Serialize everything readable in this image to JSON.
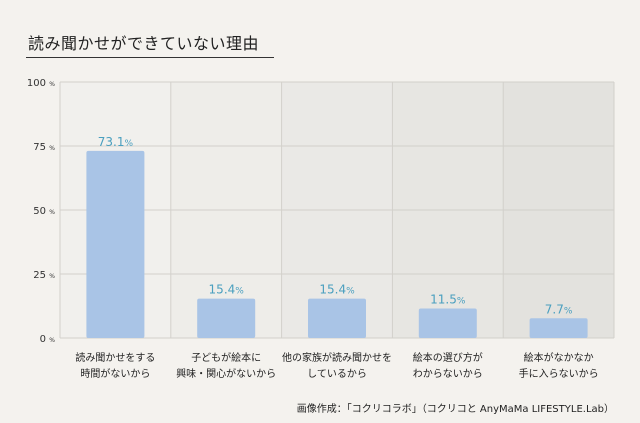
{
  "title": "読み聞かせができていない理由",
  "credit": "画像作成：「コクリコラボ」（コクリコと AnyMaMa LIFESTYLE.Lab）",
  "colors": {
    "bar": "#a9c4e6",
    "value_label": "#4a9fbf",
    "panel_light": "#f1f0ed",
    "panel_dark": "#e3e2de",
    "grid": "#d2d0cb"
  },
  "chart_data": {
    "type": "bar",
    "title": "読み聞かせができていない理由",
    "categories": [
      [
        "読み聞かせをする",
        "時間がないから"
      ],
      [
        "子どもが絵本に",
        "興味・関心がないから"
      ],
      [
        "他の家族が読み聞かせを",
        "しているから"
      ],
      [
        "絵本の選び方が",
        "わからないから"
      ],
      [
        "絵本がなかなか",
        "手に入らないから"
      ]
    ],
    "values": [
      73.1,
      15.4,
      15.4,
      11.5,
      7.7
    ],
    "value_labels": [
      "73.1",
      "15.4",
      "15.4",
      "11.5",
      "7.7"
    ],
    "unit": "%",
    "ylim": [
      0,
      100
    ],
    "yticks": [
      0,
      25,
      50,
      75,
      100
    ],
    "ytick_labels": [
      "0",
      "25",
      "50",
      "75",
      "100"
    ],
    "grid": true,
    "xlabel": "",
    "ylabel": ""
  }
}
